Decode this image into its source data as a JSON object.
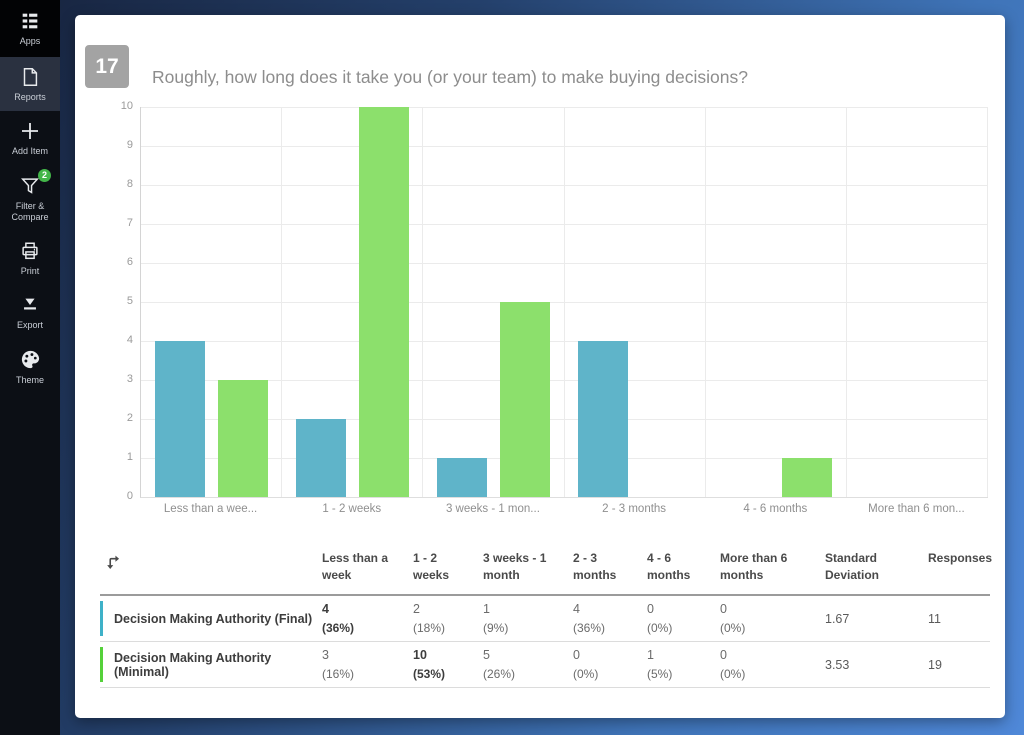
{
  "sidebar": {
    "items": [
      {
        "id": "apps",
        "label": "Apps",
        "icon": "apps-icon",
        "active": false,
        "badge": null
      },
      {
        "id": "reports",
        "label": "Reports",
        "icon": "reports-icon",
        "active": true,
        "badge": null
      },
      {
        "id": "add-item",
        "label": "Add Item",
        "icon": "add-item-icon",
        "active": false,
        "badge": null
      },
      {
        "id": "filter-compare",
        "label": "Filter & Compare",
        "icon": "filter-icon",
        "active": false,
        "badge": "2"
      },
      {
        "id": "print",
        "label": "Print",
        "icon": "print-icon",
        "active": false,
        "badge": null
      },
      {
        "id": "export",
        "label": "Export",
        "icon": "export-icon",
        "active": false,
        "badge": null
      },
      {
        "id": "theme",
        "label": "Theme",
        "icon": "theme-icon",
        "active": false,
        "badge": null
      }
    ]
  },
  "question": {
    "number": "17",
    "title": "Roughly, how long does it take you (or your team) to make buying decisions?"
  },
  "chart_data": {
    "type": "bar",
    "title": "Roughly, how long does it take you (or your team) to make buying decisions?",
    "categories": [
      "Less than a week",
      "1 - 2 weeks",
      "3 weeks - 1 month",
      "2 - 3 months",
      "4 - 6 months",
      "More than 6 months"
    ],
    "tick_labels": [
      "Less than a wee...",
      "1 - 2 weeks",
      "3 weeks - 1 mon...",
      "2 - 3 months",
      "4 - 6 months",
      "More than 6 mon..."
    ],
    "series": [
      {
        "name": "Decision Making Authority (Final)",
        "color": "#5fb4c9",
        "values": [
          4,
          2,
          1,
          4,
          0,
          0
        ]
      },
      {
        "name": "Decision Making Authority (Minimal)",
        "color": "#8ce06c",
        "values": [
          3,
          10,
          5,
          0,
          1,
          0
        ]
      }
    ],
    "ylim": [
      0,
      10
    ],
    "ytick_step": 1,
    "grid": true,
    "legend_position": "none"
  },
  "table": {
    "corner_icon": "transpose-icon",
    "headers": [
      "Less than a week",
      "1 - 2 weeks",
      "3 weeks - 1 month",
      "2 - 3 months",
      "4 - 6 months",
      "More than 6 months",
      "Standard Deviation",
      "Responses"
    ],
    "rows": [
      {
        "label": "Decision Making Authority (Final)",
        "indicator_color": "#3eb1c8",
        "cells": [
          {
            "count": "4",
            "pct": "(36%)",
            "bold": true
          },
          {
            "count": "2",
            "pct": "(18%)",
            "bold": false
          },
          {
            "count": "1",
            "pct": "(9%)",
            "bold": false
          },
          {
            "count": "4",
            "pct": "(36%)",
            "bold": false
          },
          {
            "count": "0",
            "pct": "(0%)",
            "bold": false
          },
          {
            "count": "0",
            "pct": "(0%)",
            "bold": false
          }
        ],
        "std_deviation": "1.67",
        "responses": "11"
      },
      {
        "label": "Decision Making Authority (Minimal)",
        "indicator_color": "#55d13a",
        "cells": [
          {
            "count": "3",
            "pct": "(16%)",
            "bold": false
          },
          {
            "count": "10",
            "pct": "(53%)",
            "bold": true
          },
          {
            "count": "5",
            "pct": "(26%)",
            "bold": false
          },
          {
            "count": "0",
            "pct": "(0%)",
            "bold": false
          },
          {
            "count": "1",
            "pct": "(5%)",
            "bold": false
          },
          {
            "count": "0",
            "pct": "(0%)",
            "bold": false
          }
        ],
        "std_deviation": "3.53",
        "responses": "19"
      }
    ]
  },
  "colors": {
    "bar_blue": "#5fb4c9",
    "bar_green": "#8ce06c",
    "badge_green": "#43b649",
    "question_number_bg": "#a3a3a3",
    "sidebar_bg": "#0c0f15",
    "sidebar_active_bg": "#2a3140"
  }
}
